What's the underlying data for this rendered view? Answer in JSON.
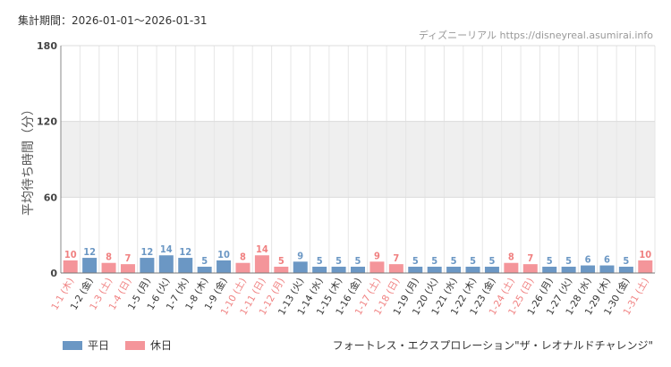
{
  "header": {
    "period": "集計期間：2026-01-01～2026-01-31",
    "source": "ディズニーリアル https://disneyreal.asumirai.info"
  },
  "footer": {
    "attraction": "フォートレス・エクスプロレーション\"ザ・レオナルドチャレンジ\""
  },
  "colors": {
    "weekday": "#6b97c4",
    "holiday": "#f4959a",
    "holiday_text": "#f08080"
  },
  "chart_data": {
    "type": "bar",
    "ylabel": "平均待ち時間（分）",
    "ylim": [
      0,
      180
    ],
    "yticks": [
      0,
      60,
      120,
      180
    ],
    "band": [
      60,
      120
    ],
    "legend": [
      {
        "name": "平日",
        "key": "weekday"
      },
      {
        "name": "休日",
        "key": "holiday"
      }
    ],
    "categories": [
      "1-1 (木)",
      "1-2 (金)",
      "1-3 (土)",
      "1-4 (日)",
      "1-5 (月)",
      "1-6 (火)",
      "1-7 (水)",
      "1-8 (木)",
      "1-9 (金)",
      "1-10 (土)",
      "1-11 (日)",
      "1-12 (月)",
      "1-13 (火)",
      "1-14 (水)",
      "1-15 (木)",
      "1-16 (金)",
      "1-17 (土)",
      "1-18 (日)",
      "1-19 (月)",
      "1-20 (火)",
      "1-21 (水)",
      "1-22 (木)",
      "1-23 (金)",
      "1-24 (土)",
      "1-25 (日)",
      "1-26 (月)",
      "1-27 (火)",
      "1-28 (水)",
      "1-29 (木)",
      "1-30 (金)",
      "1-31 (土)"
    ],
    "values": [
      10,
      12,
      8,
      7,
      12,
      14,
      12,
      5,
      10,
      8,
      14,
      5,
      9,
      5,
      5,
      5,
      9,
      7,
      5,
      5,
      5,
      5,
      5,
      8,
      7,
      5,
      5,
      6,
      6,
      5,
      10
    ],
    "day_type": [
      "holiday",
      "weekday",
      "holiday",
      "holiday",
      "weekday",
      "weekday",
      "weekday",
      "weekday",
      "weekday",
      "holiday",
      "holiday",
      "holiday",
      "weekday",
      "weekday",
      "weekday",
      "weekday",
      "holiday",
      "holiday",
      "weekday",
      "weekday",
      "weekday",
      "weekday",
      "weekday",
      "holiday",
      "holiday",
      "weekday",
      "weekday",
      "weekday",
      "weekday",
      "weekday",
      "holiday"
    ]
  }
}
